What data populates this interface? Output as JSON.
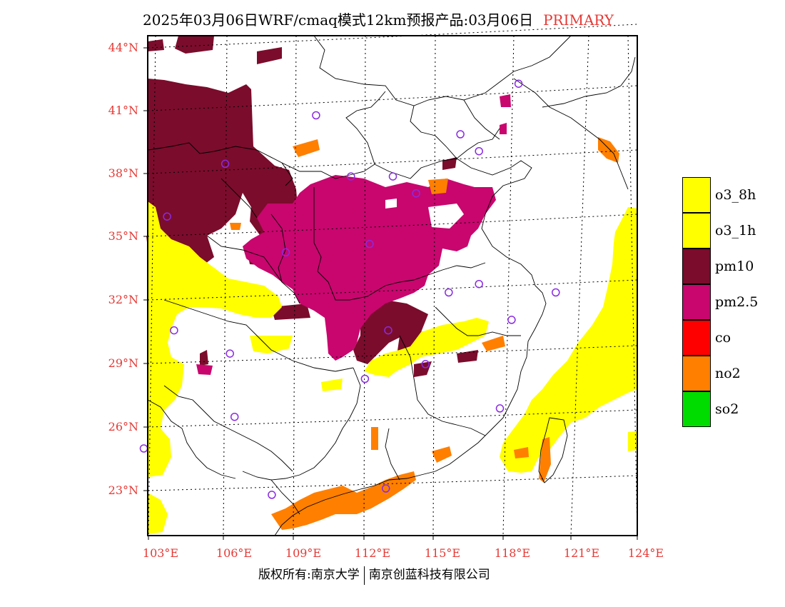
{
  "title": {
    "main": "2025年03月06日WRF/cmaq模式12km预报产品:03月06日",
    "tag": "PRIMARY"
  },
  "map": {
    "lat_labels": [
      "44°N",
      "41°N",
      "38°N",
      "35°N",
      "32°N",
      "29°N",
      "26°N",
      "23°N"
    ],
    "lon_labels": [
      "103°E",
      "106°E",
      "109°E",
      "112°E",
      "115°E",
      "118°E",
      "121°E",
      "124°E"
    ],
    "stations": [
      {
        "lon": 118.9,
        "lat": 42.3
      },
      {
        "lon": 110.2,
        "lat": 40.8
      },
      {
        "lon": 116.4,
        "lat": 39.9
      },
      {
        "lon": 117.2,
        "lat": 39.1
      },
      {
        "lon": 106.3,
        "lat": 38.5
      },
      {
        "lon": 111.7,
        "lat": 37.9
      },
      {
        "lon": 113.5,
        "lat": 37.9
      },
      {
        "lon": 114.5,
        "lat": 37.1
      },
      {
        "lon": 103.8,
        "lat": 36.0
      },
      {
        "lon": 112.5,
        "lat": 34.7
      },
      {
        "lon": 108.9,
        "lat": 34.3
      },
      {
        "lon": 115.9,
        "lat": 32.4
      },
      {
        "lon": 117.2,
        "lat": 32.8
      },
      {
        "lon": 120.5,
        "lat": 32.4
      },
      {
        "lon": 118.6,
        "lat": 31.1
      },
      {
        "lon": 104.1,
        "lat": 30.6
      },
      {
        "lon": 113.3,
        "lat": 30.6
      },
      {
        "lon": 106.5,
        "lat": 29.5
      },
      {
        "lon": 114.9,
        "lat": 29.0
      },
      {
        "lon": 112.3,
        "lat": 28.3
      },
      {
        "lon": 118.1,
        "lat": 26.9
      },
      {
        "lon": 106.7,
        "lat": 26.5
      },
      {
        "lon": 102.8,
        "lat": 25.0
      },
      {
        "lon": 108.3,
        "lat": 22.8
      },
      {
        "lon": 113.2,
        "lat": 23.1
      }
    ]
  },
  "legend": [
    {
      "label": "o3_8h",
      "color": "#ffff00"
    },
    {
      "label": "o3_1h",
      "color": "#ffff00"
    },
    {
      "label": "pm10",
      "color": "#7b0c2c"
    },
    {
      "label": "pm2.5",
      "color": "#c8066e"
    },
    {
      "label": "co",
      "color": "#ff0000"
    },
    {
      "label": "no2",
      "color": "#ff7f00"
    },
    {
      "label": "so2",
      "color": "#00dc00"
    }
  ],
  "colors": {
    "o3": "#ffff00",
    "pm10": "#7b0c2c",
    "pm25": "#c8066e",
    "no2": "#ff7f00",
    "axis_label": "#e53935",
    "station": "#8a2be2"
  },
  "footer": {
    "left": "版权所有:南京大学",
    "right": "南京创蓝科技有限公司"
  }
}
